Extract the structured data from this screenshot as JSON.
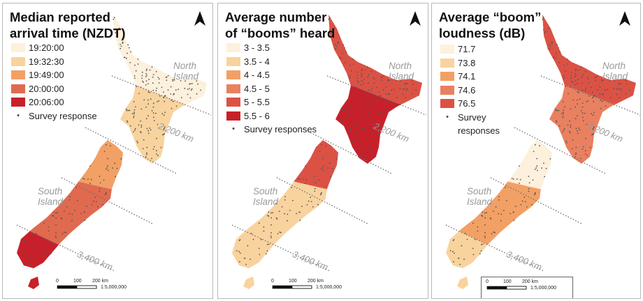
{
  "panels": [
    {
      "title_line1": "Median reported",
      "title_line2": "arrival time (NZDT)",
      "legend": [
        {
          "label": "19:20:00",
          "color": "#fdf0dc"
        },
        {
          "label": "19:32:30",
          "color": "#f8d39e"
        },
        {
          "label": "19:49:00",
          "color": "#f2a065"
        },
        {
          "label": "20:00:00",
          "color": "#e06a4f"
        },
        {
          "label": "20:06:00",
          "color": "#c8202a"
        }
      ],
      "dot_label_line1": "Survey response",
      "dot_label_line2": "",
      "region_fill_indices": {
        "north_of_2200": 0,
        "north_south_of_2200": 1,
        "south_north": 2,
        "south_mid": 3,
        "south_of_3400": 4
      }
    },
    {
      "title_line1": "Average number",
      "title_line2": "of “booms” heard",
      "legend": [
        {
          "label": "3 - 3.5",
          "color": "#fdf0dc"
        },
        {
          "label": "3.5 - 4",
          "color": "#f8d39e"
        },
        {
          "label": "4 - 4.5",
          "color": "#f2a065"
        },
        {
          "label": "4.5 - 5",
          "color": "#e98060"
        },
        {
          "label": "5 - 5.5",
          "color": "#db5245"
        },
        {
          "label": "5.5 - 6",
          "color": "#c8202a"
        }
      ],
      "dot_label_line1": "Survey responses",
      "dot_label_line2": "",
      "region_fill_indices": {
        "north_of_2200": 4,
        "north_south_of_2200": 5,
        "south_north": 4,
        "south_mid": 1,
        "south_of_3400": 1
      }
    },
    {
      "title_line1": "Average “boom”",
      "title_line2": "loudness (dB)",
      "legend": [
        {
          "label": "71.7",
          "color": "#fdf0dc"
        },
        {
          "label": "73.8",
          "color": "#f8d39e"
        },
        {
          "label": "74.1",
          "color": "#f2a065"
        },
        {
          "label": "74.6",
          "color": "#e98060"
        },
        {
          "label": "76.5",
          "color": "#db5245"
        }
      ],
      "dot_label_line1": "Survey",
      "dot_label_line2": "responses",
      "region_fill_indices": {
        "north_of_2200": 4,
        "north_south_of_2200": 3,
        "south_north": 0,
        "south_mid": 2,
        "south_of_3400": 1
      }
    }
  ],
  "map_labels": {
    "north_island_line1": "North",
    "north_island_line2": "Island",
    "south_island_line1": "South",
    "south_island_line2": "Island",
    "distance_2200": "2,200 km",
    "distance_3400": "3,400 km"
  },
  "scale_bar": {
    "tick0": "0",
    "tick1": "100",
    "tick2": "200 km",
    "ratio": "1:5,000,000"
  },
  "survey_dot_color": "#555555"
}
